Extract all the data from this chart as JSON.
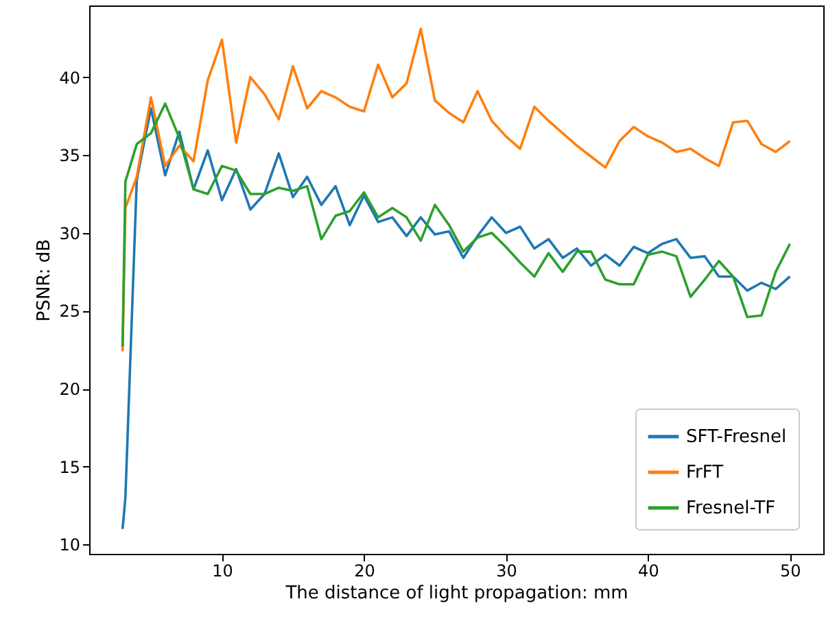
{
  "chart_data": {
    "type": "line",
    "xlabel": "The distance of light propagation: mm",
    "ylabel": "PSNR: dB",
    "x": [
      3,
      3.2,
      4,
      5,
      6,
      7,
      8,
      9,
      10,
      11,
      12,
      13,
      14,
      15,
      16,
      17,
      18,
      19,
      20,
      21,
      22,
      23,
      24,
      25,
      26,
      27,
      28,
      29,
      30,
      31,
      32,
      33,
      34,
      35,
      36,
      37,
      38,
      39,
      40,
      41,
      42,
      43,
      44,
      45,
      46,
      47,
      48,
      49,
      50
    ],
    "series": [
      {
        "name": "SFT-Fresnel",
        "color": "#1f77b4",
        "values": [
          11.0,
          13.0,
          33.4,
          38.0,
          33.7,
          36.5,
          32.8,
          35.3,
          32.1,
          34.1,
          31.5,
          32.5,
          35.1,
          32.3,
          33.6,
          31.8,
          33.0,
          30.5,
          32.4,
          30.7,
          31.0,
          29.8,
          31.0,
          29.9,
          30.1,
          28.4,
          29.8,
          31.0,
          30.0,
          30.4,
          29.0,
          29.6,
          28.4,
          29.0,
          27.9,
          28.6,
          27.9,
          29.1,
          28.7,
          29.3,
          29.6,
          28.4,
          28.5,
          27.2,
          27.2,
          26.3,
          26.8,
          26.4,
          27.2
        ]
      },
      {
        "name": "FrFT",
        "color": "#ff7f0e",
        "values": [
          22.4,
          31.6,
          33.6,
          38.7,
          34.3,
          35.6,
          34.6,
          39.8,
          42.4,
          35.8,
          40.0,
          38.9,
          37.3,
          40.7,
          38.0,
          39.1,
          38.7,
          38.1,
          37.8,
          40.8,
          38.7,
          39.6,
          43.1,
          38.5,
          37.7,
          37.1,
          39.1,
          37.2,
          36.2,
          35.4,
          38.1,
          37.2,
          36.4,
          35.6,
          34.9,
          34.2,
          35.9,
          36.8,
          36.2,
          35.8,
          35.2,
          35.4,
          34.8,
          34.3,
          37.1,
          37.2,
          35.7,
          35.2,
          35.9
        ]
      },
      {
        "name": "Fresnel-TF",
        "color": "#2ca02c",
        "values": [
          22.7,
          33.3,
          35.7,
          36.4,
          38.3,
          36.1,
          32.8,
          32.5,
          34.3,
          34.0,
          32.5,
          32.5,
          32.9,
          32.7,
          33.0,
          29.6,
          31.1,
          31.4,
          32.6,
          31.0,
          31.6,
          31.0,
          29.5,
          31.8,
          30.5,
          28.8,
          29.7,
          30.0,
          29.1,
          28.1,
          27.2,
          28.7,
          27.5,
          28.8,
          28.8,
          27.0,
          26.7,
          26.7,
          28.6,
          28.8,
          28.5,
          25.9,
          27.0,
          28.2,
          27.2,
          24.6,
          24.7,
          27.5,
          29.3
        ]
      }
    ],
    "xlim": [
      0.65,
      52.35
    ],
    "ylim": [
      9.4,
      44.6
    ],
    "xticks": [
      10,
      20,
      30,
      40,
      50
    ],
    "yticks": [
      10,
      15,
      20,
      25,
      30,
      35,
      40
    ],
    "legend": "bottom right",
    "grid": false
  }
}
